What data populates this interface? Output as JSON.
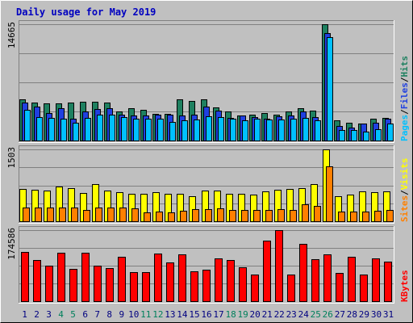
{
  "chart_data": {
    "type": "bar",
    "title": "Daily usage for May 2019",
    "categories": [
      "1",
      "2",
      "3",
      "4",
      "5",
      "6",
      "7",
      "8",
      "9",
      "10",
      "11",
      "12",
      "13",
      "14",
      "15",
      "16",
      "17",
      "18",
      "19",
      "20",
      "21",
      "22",
      "23",
      "24",
      "25",
      "26",
      "27",
      "28",
      "29",
      "30",
      "31"
    ],
    "weekend_days": [
      "4",
      "5",
      "11",
      "12",
      "18",
      "19",
      "25",
      "26"
    ],
    "panels": [
      {
        "id": "top",
        "ymax_label": "14665",
        "ymax": 14665,
        "right_label": {
          "parts": [
            "Pages",
            "/",
            "Files",
            "/",
            "Hits"
          ]
        },
        "series": [
          {
            "name": "Hits",
            "color": "#1e8060",
            "values": [
              5200,
              4750,
              4650,
              4650,
              4750,
              4900,
              4850,
              4800,
              3650,
              4100,
              3900,
              3400,
              3350,
              5200,
              5000,
              5200,
              4150,
              3650,
              3200,
              3300,
              3500,
              3300,
              3700,
              4100,
              3800,
              14665,
              2500,
              2200,
              2100,
              2800,
              2900
            ]
          },
          {
            "name": "Files",
            "color": "#2040e0",
            "values": [
              4750,
              4300,
              3500,
              4100,
              2700,
              3700,
              4000,
              4100,
              3300,
              3150,
              3200,
              3300,
              3300,
              3200,
              3300,
              4300,
              3800,
              2850,
              3200,
              3000,
              2800,
              3100,
              3200,
              3700,
              2950,
              13500,
              1800,
              1650,
              2150,
              2200,
              2800
            ]
          },
          {
            "name": "Pages",
            "color": "#00c0ff",
            "values": [
              3900,
              3000,
              2850,
              2750,
              2250,
              2850,
              3300,
              3300,
              2950,
              2800,
              2700,
              2700,
              2350,
              2500,
              2650,
              3100,
              3000,
              2750,
              2500,
              2750,
              2650,
              2600,
              2700,
              2850,
              2500,
              13000,
              1300,
              1300,
              1150,
              1400,
              2100
            ]
          }
        ]
      },
      {
        "id": "middle",
        "ymax_label": "1503",
        "ymax": 1503,
        "right_label": {
          "parts": [
            "Sites",
            "/",
            "Visits"
          ]
        },
        "series": [
          {
            "name": "Visits",
            "color": "#ffff00",
            "values": [
              670,
              660,
              640,
              720,
              700,
              590,
              780,
              650,
              600,
              570,
              570,
              610,
              580,
              570,
              520,
              650,
              650,
              580,
              580,
              560,
              620,
              660,
              680,
              690,
              780,
              1503,
              520,
              560,
              620,
              610,
              620
            ]
          },
          {
            "name": "Sites",
            "color": "#ff8000",
            "values": [
              290,
              280,
              290,
              290,
              280,
              240,
              290,
              290,
              280,
              270,
              190,
              200,
              180,
              220,
              260,
              260,
              270,
              230,
              230,
              230,
              230,
              260,
              230,
              350,
              320,
              1150,
              200,
              210,
              210,
              220,
              230
            ]
          }
        ]
      },
      {
        "id": "bottom",
        "ymax_label": "174586",
        "ymax": 174586,
        "right_label": {
          "parts": [
            "KBytes"
          ]
        },
        "series": [
          {
            "name": "KBytes",
            "color": "#ff0000",
            "values": [
              122000,
              102000,
              88000,
              120000,
              80000,
              120000,
              87000,
              82000,
              109000,
              71000,
              71000,
              118000,
              95000,
              116000,
              73000,
              77000,
              106000,
              101000,
              83000,
              66000,
              148000,
              174586,
              66000,
              141000,
              103000,
              115000,
              70000,
              109000,
              65000,
              106000,
              98000
            ]
          }
        ]
      }
    ]
  },
  "colors": {
    "background": "#c0c0c0",
    "title": "#0000c0",
    "weekday_label": "#000080",
    "weekend_label": "#00805c",
    "grid": "#808080",
    "outline": "#000000"
  }
}
